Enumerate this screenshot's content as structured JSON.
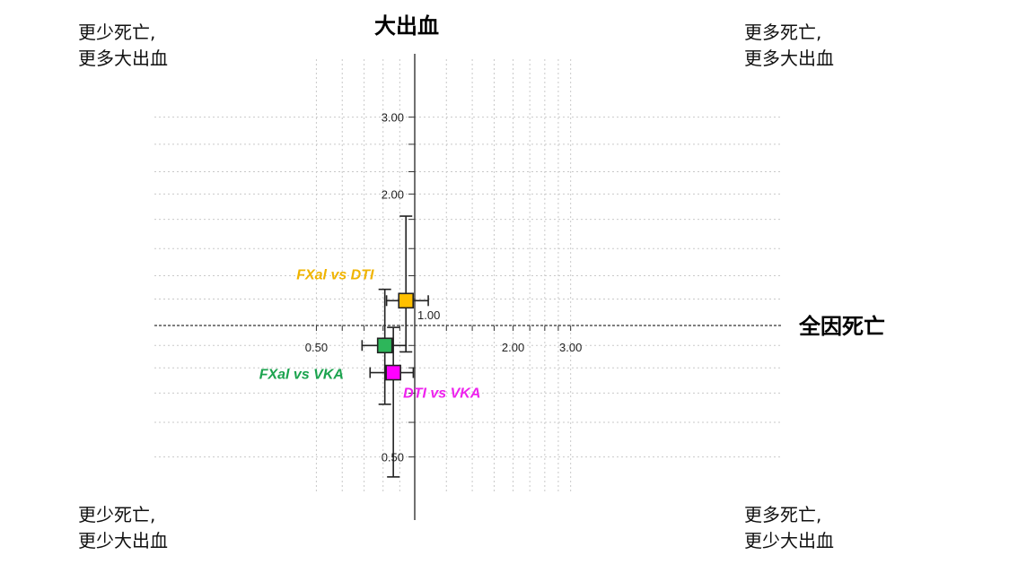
{
  "chart_data": {
    "type": "scatter",
    "title": "",
    "xlabel": "全因死亡",
    "ylabel": "大出血",
    "x_scale": "log",
    "y_scale": "log",
    "xlim": [
      0.45,
      3.05
    ],
    "ylim": [
      0.46,
      3.05
    ],
    "x_ticks": [
      "0.50",
      "2.00",
      "3.00"
    ],
    "y_ticks": [
      "3.00",
      "2.00",
      "0.50"
    ],
    "origin_label": "1.00",
    "reference": {
      "x": 1.0,
      "y": 1.0
    },
    "grid": true,
    "series": [
      {
        "name": "FXal vs DTI",
        "color": "#FFC000",
        "label_color": "#F0B400",
        "x": 0.94,
        "x_low": 0.82,
        "x_high": 1.1,
        "y": 1.14,
        "y_low": 0.87,
        "y_high": 1.78
      },
      {
        "name": "FXal vs VKA",
        "color": "#2DB65A",
        "label_color": "#1BA34E",
        "x": 0.81,
        "x_low": 0.69,
        "x_high": 0.94,
        "y": 0.9,
        "y_low": 0.66,
        "y_high": 1.21
      },
      {
        "name": "DTI vs VKA",
        "color": "#FF00FF",
        "label_color": "#EE22EE",
        "x": 0.86,
        "x_low": 0.73,
        "x_high": 0.99,
        "y": 0.78,
        "y_low": 0.45,
        "y_high": 0.99
      }
    ]
  },
  "corners": {
    "top_left": [
      "更少死亡,",
      "更多大出血"
    ],
    "top_right": [
      "更多死亡,",
      "更多大出血"
    ],
    "bottom_left": [
      "更少死亡,",
      "更少大出血"
    ],
    "bottom_right": [
      "更多死亡,",
      "更少大出血"
    ]
  }
}
